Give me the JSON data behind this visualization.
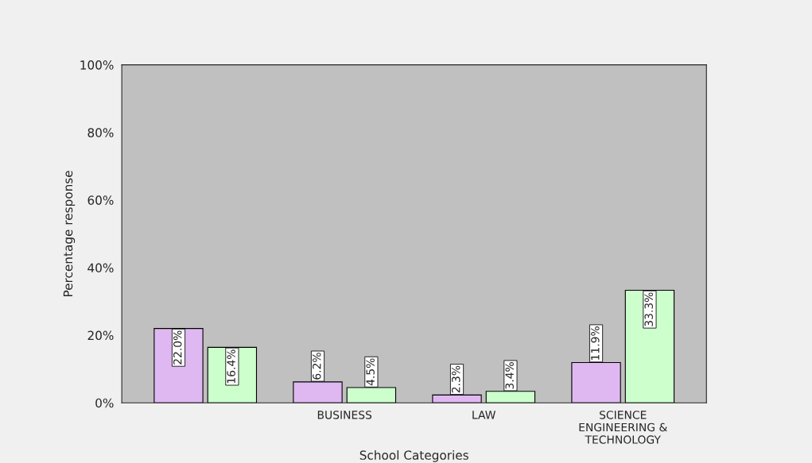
{
  "chart_data": {
    "type": "bar",
    "xlabel": "School Categories",
    "ylabel": "Percentage response",
    "categories": [
      null,
      "BUSINESS",
      "LAW",
      "SCIENCE\nENGINEERING &\nTECHNOLOGY"
    ],
    "series": [
      {
        "color": "#dfb8f2",
        "values": [
          22.0,
          6.2,
          2.3,
          11.9
        ],
        "value_labels": [
          "22.0%",
          "6.2%",
          "2.3%",
          "11.9%"
        ]
      },
      {
        "color": "#ccffcc",
        "values": [
          16.4,
          4.5,
          3.4,
          33.3
        ],
        "value_labels": [
          "16.4%",
          "4.5%",
          "3.4%",
          "33.3%"
        ]
      }
    ],
    "ylim": [
      0,
      100
    ],
    "yticks": [
      {
        "value": 0,
        "label": "0%"
      },
      {
        "value": 20,
        "label": "20%"
      },
      {
        "value": 40,
        "label": "40%"
      },
      {
        "value": 60,
        "label": "60%"
      },
      {
        "value": 80,
        "label": "80%"
      },
      {
        "value": 100,
        "label": "100%"
      }
    ],
    "grid": false,
    "legend": false
  }
}
